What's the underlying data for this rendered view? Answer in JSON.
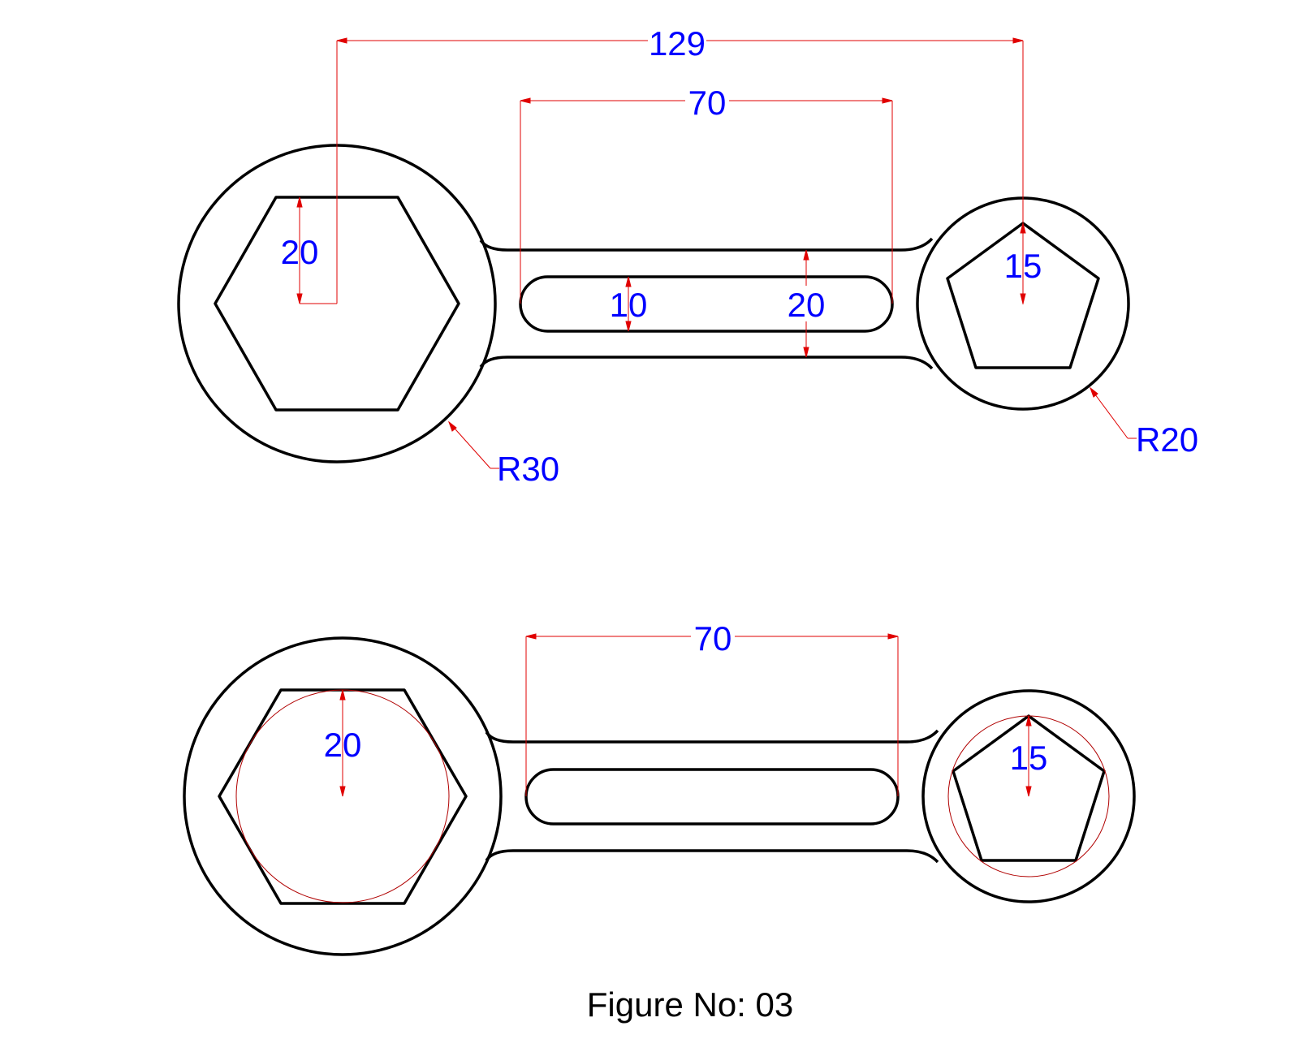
{
  "colors": {
    "outline": "#000000",
    "dimension_line": "#e00000",
    "dimension_text": "#0000ff",
    "caption_text": "#000000",
    "background": "#ffffff"
  },
  "top_view": {
    "overall_length": "129",
    "slot_length": "70",
    "hexagon_size": "20",
    "slot_width": "10",
    "arm_width": "20",
    "pentagon_size": "15",
    "large_radius": "R30",
    "small_radius": "R20"
  },
  "bottom_view": {
    "slot_length": "70",
    "hexagon_size": "20",
    "pentagon_size": "15"
  },
  "caption": "Figure No: 03"
}
